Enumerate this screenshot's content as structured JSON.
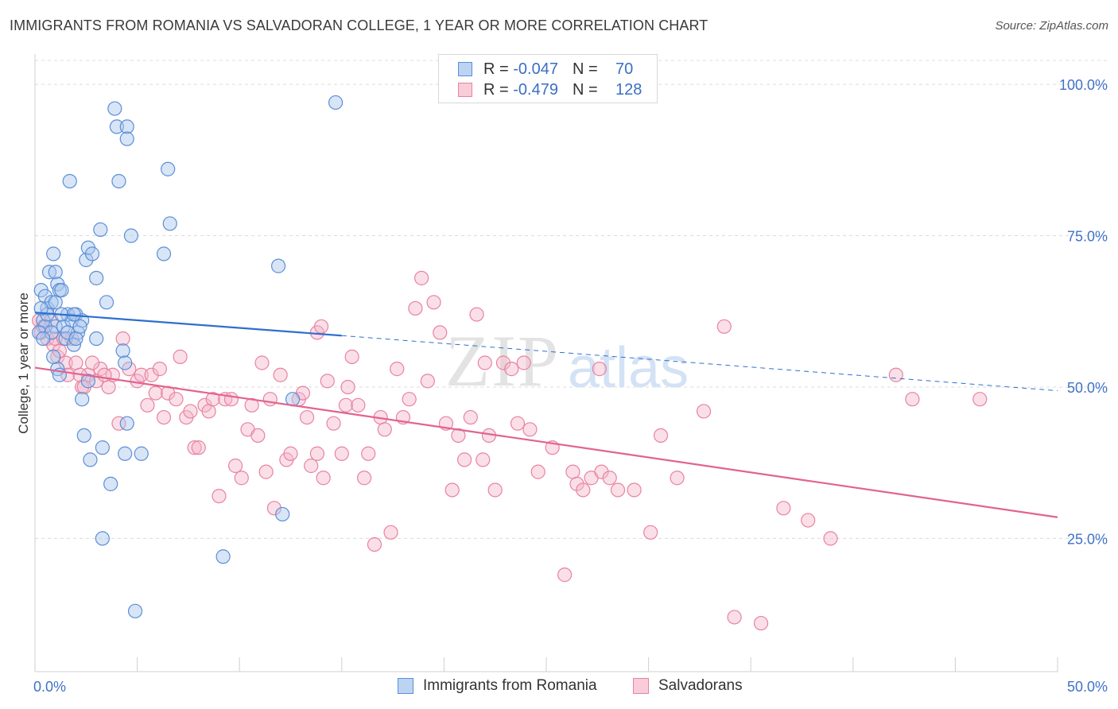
{
  "title": "IMMIGRANTS FROM ROMANIA VS SALVADORAN COLLEGE, 1 YEAR OR MORE CORRELATION CHART",
  "source": "Source: ZipAtlas.com",
  "watermark": {
    "zip": "ZIP",
    "atlas": "atlas"
  },
  "legend": {
    "romania": {
      "r_label": "R =",
      "r_value": "-0.047",
      "n_label": "N =",
      "n_value": "70"
    },
    "salvadoran": {
      "r_label": "R =",
      "r_value": "-0.479",
      "n_label": "N =",
      "n_value": "128"
    }
  },
  "colors": {
    "romania_fill": "#a9c6ee",
    "romania_stroke": "#5b8fd6",
    "romania_line": "#2e6fd0",
    "salvadoran_fill": "#f5b8cc",
    "salvadoran_stroke": "#e8839f",
    "salvadoran_line": "#e2638f",
    "axis_text": "#3f72c7",
    "grid": "#dcdcdc"
  },
  "chart_data": {
    "type": "scatter",
    "title": "IMMIGRANTS FROM ROMANIA VS SALVADORAN COLLEGE, 1 YEAR OR MORE CORRELATION CHART",
    "xlabel": "",
    "ylabel": "College, 1 year or more",
    "xlim": [
      0,
      50
    ],
    "ylim": [
      3,
      105
    ],
    "x_tick_labels": [
      "0.0%",
      "50.0%"
    ],
    "y_ticks": [
      25,
      50,
      75,
      100
    ],
    "y_tick_labels": [
      "25.0%",
      "50.0%",
      "75.0%",
      "100.0%"
    ],
    "grid": true,
    "series": [
      {
        "name": "Immigrants from Romania",
        "trend": {
          "x": [
            0,
            15
          ],
          "y": [
            62.3,
            58.5
          ],
          "dashed_to": [
            50,
            49.4
          ]
        },
        "points": [
          [
            0.3,
            66
          ],
          [
            0.5,
            65
          ],
          [
            0.6,
            63
          ],
          [
            0.4,
            61
          ],
          [
            0.8,
            64
          ],
          [
            1.0,
            64
          ],
          [
            0.7,
            69
          ],
          [
            1.0,
            69
          ],
          [
            0.9,
            72
          ],
          [
            1.1,
            67
          ],
          [
            1.2,
            66
          ],
          [
            1.0,
            60
          ],
          [
            1.4,
            60
          ],
          [
            1.6,
            62
          ],
          [
            1.8,
            61
          ],
          [
            2.0,
            62
          ],
          [
            1.5,
            58
          ],
          [
            1.9,
            57
          ],
          [
            2.1,
            59
          ],
          [
            2.3,
            61
          ],
          [
            1.1,
            53
          ],
          [
            1.2,
            52
          ],
          [
            2.3,
            48
          ],
          [
            2.6,
            51
          ],
          [
            1.3,
            66
          ],
          [
            0.5,
            60
          ],
          [
            0.9,
            55
          ],
          [
            2.5,
            71
          ],
          [
            2.6,
            73
          ],
          [
            2.8,
            72
          ],
          [
            3.0,
            68
          ],
          [
            3.2,
            76
          ],
          [
            3.5,
            64
          ],
          [
            3.0,
            58
          ],
          [
            1.7,
            84
          ],
          [
            3.9,
            96
          ],
          [
            4.0,
            93
          ],
          [
            4.5,
            93
          ],
          [
            4.5,
            91
          ],
          [
            4.1,
            84
          ],
          [
            4.7,
            75
          ],
          [
            6.3,
            72
          ],
          [
            6.5,
            86
          ],
          [
            6.6,
            77
          ],
          [
            4.3,
            56
          ],
          [
            4.4,
            54
          ],
          [
            4.5,
            44
          ],
          [
            2.4,
            42
          ],
          [
            2.7,
            38
          ],
          [
            3.3,
            40
          ],
          [
            4.4,
            39
          ],
          [
            5.2,
            39
          ],
          [
            3.7,
            34
          ],
          [
            3.3,
            25
          ],
          [
            4.9,
            13
          ],
          [
            9.2,
            22
          ],
          [
            11.9,
            70
          ],
          [
            12.1,
            29
          ],
          [
            14.7,
            97
          ],
          [
            12.6,
            48
          ],
          [
            0.2,
            59
          ],
          [
            0.6,
            62
          ],
          [
            0.3,
            63
          ],
          [
            1.3,
            62
          ],
          [
            1.6,
            59
          ],
          [
            2.0,
            58
          ],
          [
            2.2,
            60
          ],
          [
            0.8,
            59
          ],
          [
            0.4,
            58
          ],
          [
            1.9,
            62
          ]
        ]
      },
      {
        "name": "Salvadorans",
        "trend": {
          "x": [
            0,
            50
          ],
          "y": [
            53.2,
            28.5
          ]
        },
        "points": [
          [
            0.2,
            61
          ],
          [
            0.3,
            59
          ],
          [
            0.6,
            58
          ],
          [
            0.9,
            57
          ],
          [
            1.1,
            55
          ],
          [
            1.5,
            54
          ],
          [
            1.8,
            58
          ],
          [
            2.0,
            54
          ],
          [
            2.3,
            50
          ],
          [
            2.6,
            52
          ],
          [
            3.0,
            51
          ],
          [
            3.2,
            53
          ],
          [
            3.6,
            50
          ],
          [
            3.8,
            52
          ],
          [
            4.1,
            44
          ],
          [
            4.3,
            58
          ],
          [
            4.6,
            53
          ],
          [
            5.0,
            51
          ],
          [
            5.2,
            52
          ],
          [
            5.5,
            47
          ],
          [
            5.7,
            52
          ],
          [
            5.9,
            49
          ],
          [
            6.1,
            53
          ],
          [
            6.3,
            45
          ],
          [
            6.5,
            49
          ],
          [
            6.9,
            48
          ],
          [
            7.1,
            55
          ],
          [
            7.4,
            45
          ],
          [
            7.6,
            46
          ],
          [
            7.8,
            40
          ],
          [
            8.0,
            40
          ],
          [
            8.3,
            47
          ],
          [
            8.5,
            46
          ],
          [
            8.7,
            48
          ],
          [
            9.0,
            32
          ],
          [
            9.3,
            48
          ],
          [
            9.6,
            48
          ],
          [
            9.8,
            37
          ],
          [
            10.1,
            35
          ],
          [
            10.4,
            43
          ],
          [
            10.6,
            47
          ],
          [
            10.9,
            42
          ],
          [
            11.1,
            54
          ],
          [
            11.3,
            36
          ],
          [
            11.5,
            48
          ],
          [
            11.7,
            30
          ],
          [
            12.0,
            52
          ],
          [
            12.3,
            38
          ],
          [
            12.5,
            39
          ],
          [
            12.9,
            48
          ],
          [
            13.1,
            49
          ],
          [
            13.3,
            45
          ],
          [
            13.5,
            37
          ],
          [
            13.8,
            39
          ],
          [
            14.1,
            35
          ],
          [
            14.3,
            51
          ],
          [
            14.6,
            44
          ],
          [
            15.0,
            39
          ],
          [
            15.2,
            47
          ],
          [
            15.5,
            55
          ],
          [
            15.8,
            47
          ],
          [
            16.1,
            35
          ],
          [
            16.3,
            39
          ],
          [
            16.6,
            24
          ],
          [
            16.9,
            45
          ],
          [
            17.1,
            43
          ],
          [
            17.4,
            26
          ],
          [
            17.7,
            53
          ],
          [
            18.0,
            45
          ],
          [
            18.3,
            48
          ],
          [
            18.6,
            63
          ],
          [
            18.9,
            68
          ],
          [
            19.2,
            51
          ],
          [
            19.5,
            64
          ],
          [
            19.8,
            59
          ],
          [
            20.1,
            44
          ],
          [
            20.4,
            33
          ],
          [
            20.7,
            42
          ],
          [
            21.0,
            38
          ],
          [
            21.3,
            45
          ],
          [
            21.6,
            62
          ],
          [
            21.9,
            38
          ],
          [
            22.2,
            42
          ],
          [
            22.5,
            33
          ],
          [
            22.9,
            54
          ],
          [
            23.3,
            53
          ],
          [
            23.6,
            44
          ],
          [
            23.9,
            54
          ],
          [
            24.2,
            43
          ],
          [
            24.6,
            36
          ],
          [
            25.3,
            40
          ],
          [
            25.9,
            19
          ],
          [
            26.3,
            36
          ],
          [
            26.5,
            34
          ],
          [
            26.8,
            33
          ],
          [
            27.2,
            35
          ],
          [
            27.7,
            36
          ],
          [
            28.1,
            35
          ],
          [
            28.5,
            33
          ],
          [
            29.3,
            33
          ],
          [
            30.1,
            26
          ],
          [
            30.6,
            42
          ],
          [
            31.4,
            35
          ],
          [
            32.7,
            46
          ],
          [
            33.7,
            60
          ],
          [
            34.2,
            12
          ],
          [
            35.5,
            11
          ],
          [
            36.6,
            30
          ],
          [
            37.8,
            28
          ],
          [
            38.9,
            25
          ],
          [
            42.1,
            52
          ],
          [
            42.9,
            48
          ],
          [
            46.2,
            48
          ],
          [
            0.4,
            60
          ],
          [
            1.2,
            56
          ],
          [
            2.8,
            54
          ],
          [
            3.4,
            52
          ],
          [
            1.6,
            52
          ],
          [
            2.2,
            52
          ],
          [
            1.0,
            58
          ],
          [
            13.8,
            59
          ],
          [
            14.0,
            60
          ],
          [
            15.3,
            50
          ],
          [
            27.6,
            53
          ],
          [
            22.0,
            54
          ],
          [
            0.8,
            61
          ],
          [
            1.4,
            58
          ],
          [
            2.4,
            50
          ]
        ]
      }
    ]
  },
  "bottom_legend": {
    "romania": "Immigrants from Romania",
    "salvadoran": "Salvadorans"
  }
}
